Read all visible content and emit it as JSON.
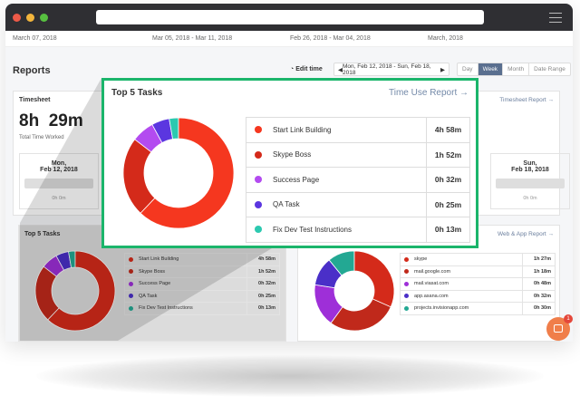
{
  "dates_row": [
    "March 07, 2018",
    "Mar 05, 2018 - Mar 11, 2018",
    "Feb 26, 2018 - Mar 04, 2018",
    "March, 2018"
  ],
  "reports": {
    "title": "Reports",
    "edit_time": "Edit time",
    "range": "Mon, Feb 12, 2018 - Sun, Feb 18, 2018",
    "views": [
      "Day",
      "Week",
      "Month",
      "Date Range"
    ],
    "active_view": "Week"
  },
  "timesheet": {
    "title": "Timesheet",
    "total": "8h  29m",
    "total_label": "Total Time Worked",
    "link": "Timesheet Report →",
    "days": [
      {
        "day": "Mon,",
        "date": "Feb 12, 2018",
        "hours": "0h 0m"
      },
      {
        "day": "Sun,",
        "date": "Feb 18, 2018",
        "hours": "0h 0m"
      }
    ]
  },
  "top5_zoom": {
    "title": "Top 5 Tasks",
    "link": "Time Use Report →",
    "rows": [
      {
        "label": "Start Link Building",
        "value": "4h 58m",
        "color": "#f5371f"
      },
      {
        "label": "Skype Boss",
        "value": "1h 52m",
        "color": "#d42a1a"
      },
      {
        "label": "Success Page",
        "value": "0h 32m",
        "color": "#b34bf0"
      },
      {
        "label": "QA Task",
        "value": "0h 25m",
        "color": "#5b36e0"
      },
      {
        "label": "Fix Dev Test Instructions",
        "value": "0h 13m",
        "color": "#2cc9b0"
      }
    ]
  },
  "top5_small": {
    "title": "Top 5 Tasks",
    "rows": [
      {
        "label": "Start Link Building",
        "value": "4h 58m",
        "color": "#d42a1a"
      },
      {
        "label": "Skype Boss",
        "value": "1h 52m",
        "color": "#c0291b"
      },
      {
        "label": "Success Page",
        "value": "0h 32m",
        "color": "#9e2fd8"
      },
      {
        "label": "QA Task",
        "value": "0h 25m",
        "color": "#4a2fc8"
      },
      {
        "label": "Fix Dev Test Instructions",
        "value": "0h 13m",
        "color": "#23a893"
      }
    ]
  },
  "web_app": {
    "link": "Web & App Report →",
    "rows": [
      {
        "label": "skype",
        "value": "1h 27m",
        "color": "#d42a1a"
      },
      {
        "label": "mail.google.com",
        "value": "1h 18m",
        "color": "#c0291b"
      },
      {
        "label": "mail.viasat.com",
        "value": "0h 48m",
        "color": "#9e2fd8"
      },
      {
        "label": "app.asana.com",
        "value": "0h 32m",
        "color": "#4a2fc8"
      },
      {
        "label": "projects.invisionapp.com",
        "value": "0h 30m",
        "color": "#23a893"
      }
    ]
  },
  "chat": {
    "badge": "1"
  },
  "colors": {
    "accent_green": "#1bb56b",
    "window_bar": "#2f2f33"
  }
}
